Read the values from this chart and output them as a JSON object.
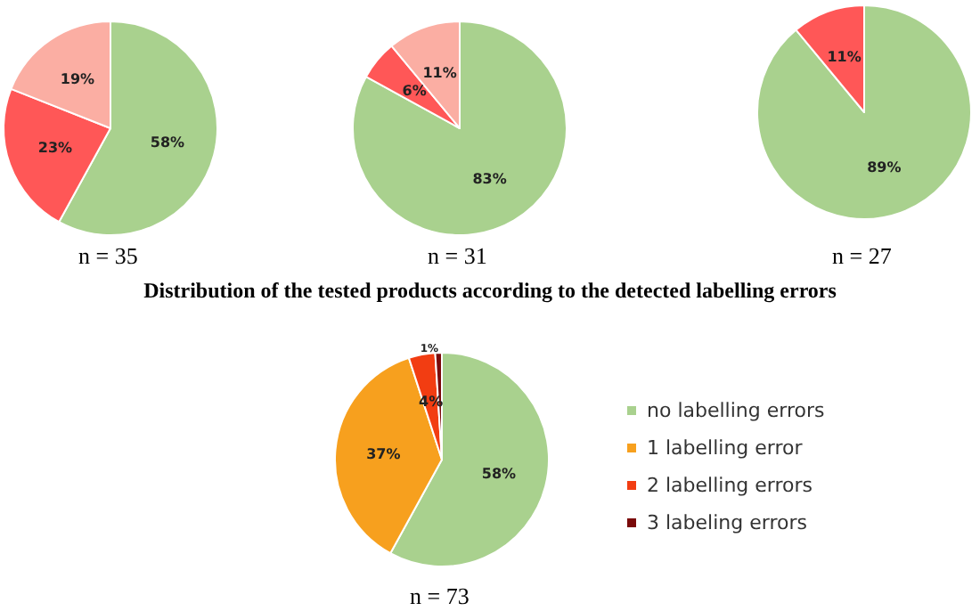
{
  "chart_data": [
    {
      "type": "pie",
      "categories": [
        null,
        null,
        null
      ],
      "values": [
        58,
        23,
        19
      ],
      "colors": [
        "#a9d18e",
        "#ff5757",
        "#fbaea3"
      ],
      "value_labels": [
        "58%",
        "23%",
        "19%"
      ],
      "legend": false,
      "annotations": [
        "n = 35"
      ]
    },
    {
      "type": "pie",
      "categories": [
        null,
        null,
        null
      ],
      "values": [
        83,
        6,
        11
      ],
      "colors": [
        "#a9d18e",
        "#ff5757",
        "#fbaea3"
      ],
      "value_labels": [
        "83%",
        "6%",
        "11%"
      ],
      "legend": false,
      "annotations": [
        "n = 31"
      ]
    },
    {
      "type": "pie",
      "categories": [
        null,
        null
      ],
      "values": [
        89,
        11
      ],
      "colors": [
        "#a9d18e",
        "#ff5757"
      ],
      "value_labels": [
        "89%",
        "11%"
      ],
      "legend": false,
      "annotations": [
        "n = 27"
      ]
    },
    {
      "type": "pie",
      "title": "Distribution of the tested products according to the detected labelling errors",
      "categories": [
        "no labelling errors",
        "1 labelling error",
        "2 labelling errors",
        "3 labeling errors"
      ],
      "values": [
        58,
        37,
        4,
        1
      ],
      "colors": [
        "#a9d18e",
        "#f7a01e",
        "#f23d12",
        "#7a0a0a"
      ],
      "value_labels": [
        "58%",
        "37%",
        "4%",
        "1%"
      ],
      "legend": "right",
      "annotations": [
        "n = 73"
      ]
    }
  ]
}
